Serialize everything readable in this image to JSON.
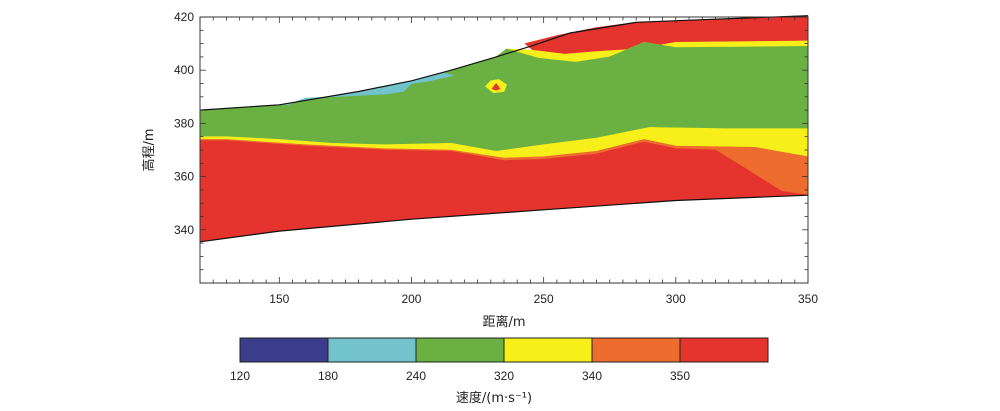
{
  "chart_data": {
    "type": "contour",
    "xlabel": "距离/m",
    "ylabel": "高程/m",
    "xlim": [
      120,
      350
    ],
    "ylim": [
      320,
      420
    ],
    "x_ticks": [
      150,
      200,
      250,
      300,
      350
    ],
    "y_ticks": [
      340,
      360,
      380,
      400,
      420
    ],
    "grid": false,
    "colorbar": {
      "label": "速度/(m·s⁻¹)",
      "tick_labels": [
        "120",
        "180",
        "240",
        "320",
        "340",
        "350"
      ],
      "bins": [
        {
          "range": [
            120,
            180
          ],
          "color": "#3c3c8c"
        },
        {
          "range": [
            180,
            240
          ],
          "color": "#72c3cc"
        },
        {
          "range": [
            240,
            320
          ],
          "color": "#6bb043"
        },
        {
          "range": [
            320,
            340
          ],
          "color": "#f7ef1a"
        },
        {
          "range": [
            340,
            350
          ],
          "color": "#ed6c2e"
        },
        {
          "range": [
            350,
            null
          ],
          "color": "#e4342d"
        }
      ]
    },
    "surfaces": {
      "top": [
        [
          120,
          385
        ],
        [
          150,
          387
        ],
        [
          180,
          392
        ],
        [
          200,
          396
        ],
        [
          215,
          400
        ],
        [
          232,
          405
        ],
        [
          245,
          409
        ],
        [
          260,
          414
        ],
        [
          285,
          418
        ],
        [
          310,
          419
        ],
        [
          350,
          420.5
        ]
      ],
      "bottom": [
        [
          120,
          335.5
        ],
        [
          150,
          339.5
        ],
        [
          200,
          344
        ],
        [
          250,
          347.5
        ],
        [
          300,
          351
        ],
        [
          350,
          353
        ]
      ]
    },
    "layers": [
      {
        "name": "red_top",
        "color": "#e4342d",
        "top": [
          [
            243,
            410
          ],
          [
            255,
            413
          ],
          [
            270,
            416
          ],
          [
            285,
            418
          ],
          [
            310,
            419
          ],
          [
            350,
            420.5
          ]
        ],
        "bottom": [
          [
            350,
            411
          ],
          [
            300,
            410.5
          ],
          [
            286,
            408
          ],
          [
            270,
            407
          ],
          [
            258,
            406
          ],
          [
            246,
            407.5
          ]
        ]
      },
      {
        "name": "yellow_top",
        "color": "#f7ef1a",
        "top": [
          [
            236,
            408
          ],
          [
            246,
            407.5
          ],
          [
            258,
            406
          ],
          [
            270,
            407
          ],
          [
            286,
            408
          ],
          [
            300,
            410.5
          ],
          [
            350,
            411
          ]
        ],
        "bottom": [
          [
            350,
            409
          ],
          [
            300,
            408.5
          ],
          [
            288,
            410.5
          ],
          [
            275,
            405
          ],
          [
            262,
            403
          ],
          [
            248,
            404.5
          ]
        ]
      },
      {
        "name": "green",
        "color": "#6bb043",
        "top": [
          [
            120,
            385
          ],
          [
            150,
            387
          ],
          [
            180,
            392
          ],
          [
            200,
            396
          ],
          [
            215,
            400
          ],
          [
            232,
            405
          ],
          [
            236,
            408
          ],
          [
            248,
            404.5
          ],
          [
            262,
            403
          ],
          [
            275,
            405
          ],
          [
            288,
            410.5
          ],
          [
            300,
            408.5
          ],
          [
            350,
            409
          ]
        ],
        "bottom": [
          [
            350,
            378
          ],
          [
            320,
            378
          ],
          [
            290,
            378.5
          ],
          [
            270,
            374.5
          ],
          [
            250,
            372
          ],
          [
            232,
            369.5
          ],
          [
            215,
            372.5
          ],
          [
            190,
            372
          ],
          [
            170,
            372.5
          ],
          [
            150,
            374
          ],
          [
            130,
            375
          ],
          [
            120,
            375
          ]
        ]
      },
      {
        "name": "cyan",
        "color": "#72c3cc",
        "top": [
          [
            150,
            387
          ],
          [
            180,
            392
          ],
          [
            200,
            396
          ],
          [
            212,
            399
          ],
          [
            216,
            398
          ]
        ],
        "bottom": [
          [
            216,
            398
          ],
          [
            207,
            396
          ],
          [
            200,
            395
          ],
          [
            197,
            392
          ],
          [
            190,
            391
          ],
          [
            180,
            390.5
          ],
          [
            160,
            389.5
          ],
          [
            153,
            387
          ]
        ]
      },
      {
        "name": "yellow_band",
        "color": "#f7ef1a",
        "top": [
          [
            120,
            375
          ],
          [
            130,
            375
          ],
          [
            150,
            374
          ],
          [
            170,
            372.5
          ],
          [
            190,
            372
          ],
          [
            215,
            372.5
          ],
          [
            232,
            369.5
          ],
          [
            250,
            372
          ],
          [
            270,
            374.5
          ],
          [
            290,
            378.5
          ],
          [
            320,
            378
          ],
          [
            350,
            378
          ]
        ],
        "bottom": [
          [
            350,
            367.5
          ],
          [
            330,
            371
          ],
          [
            300,
            371.5
          ],
          [
            288,
            374
          ],
          [
            270,
            369.5
          ],
          [
            250,
            367.5
          ],
          [
            235,
            367
          ],
          [
            215,
            370
          ],
          [
            190,
            370.5
          ],
          [
            160,
            372
          ],
          [
            130,
            374
          ],
          [
            120,
            374
          ]
        ]
      },
      {
        "name": "orange_band",
        "color": "#ed6c2e",
        "top": [
          [
            120,
            374
          ],
          [
            130,
            374
          ],
          [
            160,
            372
          ],
          [
            190,
            370.5
          ],
          [
            215,
            370
          ],
          [
            235,
            367
          ],
          [
            250,
            367.5
          ],
          [
            270,
            369.5
          ],
          [
            288,
            374
          ],
          [
            300,
            371.5
          ],
          [
            330,
            371
          ],
          [
            350,
            367.5
          ]
        ],
        "bottom": [
          [
            350,
            353
          ],
          [
            340,
            354.5
          ],
          [
            328,
            362
          ],
          [
            315,
            370
          ],
          [
            300,
            370.5
          ],
          [
            288,
            373
          ],
          [
            270,
            368.5
          ],
          [
            250,
            366.5
          ],
          [
            235,
            366
          ],
          [
            215,
            369.5
          ],
          [
            190,
            370
          ],
          [
            160,
            371.5
          ],
          [
            130,
            373.5
          ],
          [
            120,
            373.5
          ]
        ]
      },
      {
        "name": "red_bottom",
        "color": "#e4342d",
        "top": [
          [
            120,
            373.5
          ],
          [
            130,
            373.5
          ],
          [
            160,
            371.5
          ],
          [
            190,
            370
          ],
          [
            215,
            369.5
          ],
          [
            235,
            366
          ],
          [
            250,
            366.5
          ],
          [
            270,
            368.5
          ],
          [
            288,
            373
          ],
          [
            300,
            370.5
          ],
          [
            315,
            370
          ],
          [
            328,
            362
          ],
          [
            340,
            354.5
          ],
          [
            350,
            353
          ]
        ],
        "bottom": [
          [
            350,
            353
          ],
          [
            300,
            351
          ],
          [
            250,
            347.5
          ],
          [
            200,
            344
          ],
          [
            150,
            339.5
          ],
          [
            120,
            335.5
          ]
        ]
      },
      {
        "name": "anomaly_yellow",
        "color": "#f7ef1a",
        "top": [
          [
            228,
            394
          ],
          [
            230,
            396
          ],
          [
            233,
            396.5
          ],
          [
            236,
            394.5
          ],
          [
            235,
            392
          ],
          [
            231,
            391.5
          ]
        ],
        "bottom": []
      },
      {
        "name": "anomaly_red",
        "color": "#e4342d",
        "top": [
          [
            230.5,
            393
          ],
          [
            232,
            395
          ],
          [
            233.5,
            393
          ],
          [
            232,
            392.5
          ]
        ],
        "bottom": []
      }
    ]
  }
}
